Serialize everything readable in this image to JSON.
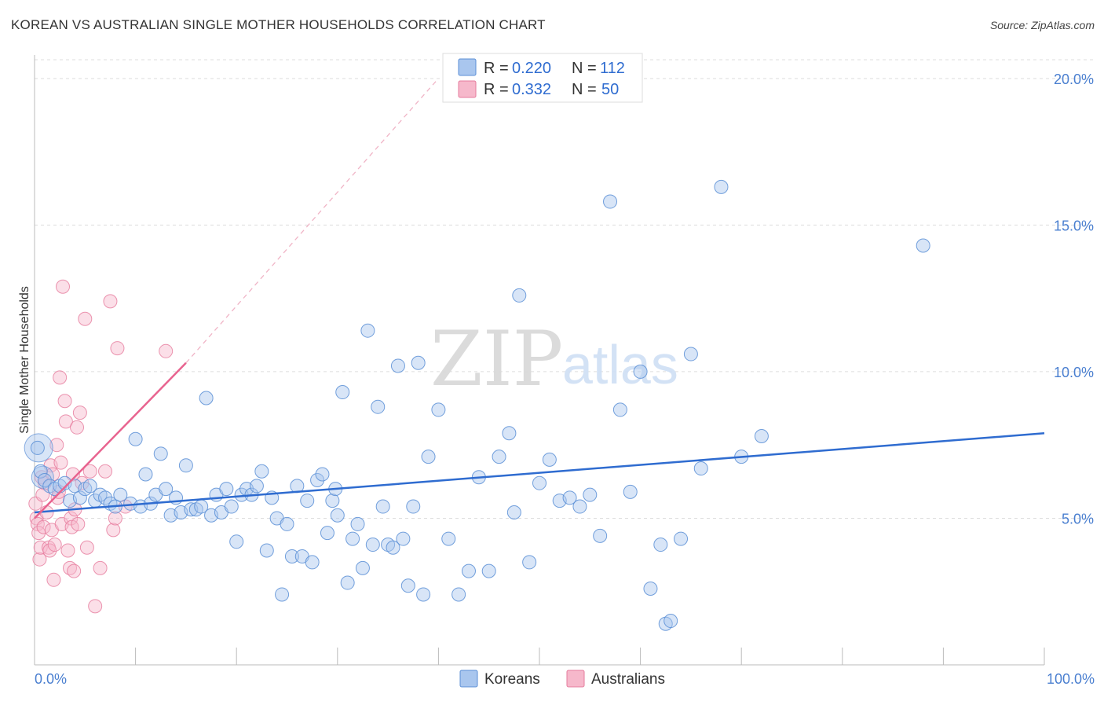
{
  "header": {
    "title": "KOREAN VS AUSTRALIAN SINGLE MOTHER HOUSEHOLDS CORRELATION CHART",
    "source": "Source: ZipAtlas.com"
  },
  "watermark": {
    "zip": "ZIP",
    "atlas": "atlas"
  },
  "colors": {
    "koreans_fill": "#a9c6ee",
    "koreans_stroke": "#5b8fd6",
    "koreans_line": "#2f6cd0",
    "australians_fill": "#f6b8cb",
    "australians_stroke": "#e67b9c",
    "australians_line": "#e8638f",
    "grid": "#dddddd",
    "axis_label": "#4a7fd0"
  },
  "legend": {
    "rows": [
      {
        "r_label": "R =",
        "r_value": "0.220",
        "n_label": "N =",
        "n_value": "112"
      },
      {
        "r_label": "R =",
        "r_value": "0.332",
        "n_label": "N =",
        "n_value": "50"
      }
    ]
  },
  "bottom_legend": {
    "series1": "Koreans",
    "series2": "Australians"
  },
  "chart_data": {
    "type": "scatter",
    "title": "KOREAN VS AUSTRALIAN SINGLE MOTHER HOUSEHOLDS CORRELATION CHART",
    "xlabel": "",
    "ylabel": "Single Mother Households",
    "x_tick_labels": [
      "0.0%",
      "100.0%"
    ],
    "y_tick_labels": [
      "5.0%",
      "10.0%",
      "15.0%",
      "20.0%"
    ],
    "xlim": [
      0,
      100
    ],
    "ylim": [
      0,
      20.8
    ],
    "grid": true,
    "legend_placement": "top-center",
    "series": [
      {
        "name": "Koreans",
        "r": 0.22,
        "n": 112,
        "trend": {
          "x": [
            0,
            100
          ],
          "y": [
            5.2,
            7.9
          ]
        },
        "points": [
          [
            0.3,
            7.4
          ],
          [
            0.6,
            6.6
          ],
          [
            1.0,
            6.3
          ],
          [
            1.5,
            6.1
          ],
          [
            2.0,
            6.0
          ],
          [
            2.5,
            6.1
          ],
          [
            3.0,
            6.2
          ],
          [
            3.5,
            5.6
          ],
          [
            4.0,
            6.1
          ],
          [
            4.5,
            5.7
          ],
          [
            5.0,
            6.0
          ],
          [
            5.5,
            6.1
          ],
          [
            6.0,
            5.6
          ],
          [
            6.5,
            5.8
          ],
          [
            7.0,
            5.7
          ],
          [
            7.5,
            5.5
          ],
          [
            8.0,
            5.4
          ],
          [
            8.5,
            5.8
          ],
          [
            9.5,
            5.5
          ],
          [
            10.0,
            7.7
          ],
          [
            10.5,
            5.4
          ],
          [
            11.0,
            6.5
          ],
          [
            11.5,
            5.5
          ],
          [
            12.0,
            5.8
          ],
          [
            12.5,
            7.2
          ],
          [
            13.0,
            6.0
          ],
          [
            13.5,
            5.1
          ],
          [
            14.0,
            5.7
          ],
          [
            14.5,
            5.2
          ],
          [
            15.0,
            6.8
          ],
          [
            15.5,
            5.3
          ],
          [
            16.0,
            5.3
          ],
          [
            16.5,
            5.4
          ],
          [
            17.0,
            9.1
          ],
          [
            17.5,
            5.1
          ],
          [
            18.0,
            5.8
          ],
          [
            18.5,
            5.2
          ],
          [
            19.0,
            6.0
          ],
          [
            19.5,
            5.4
          ],
          [
            20.0,
            4.2
          ],
          [
            20.5,
            5.8
          ],
          [
            21.0,
            6.0
          ],
          [
            21.5,
            5.8
          ],
          [
            22.0,
            6.1
          ],
          [
            22.5,
            6.6
          ],
          [
            23.0,
            3.9
          ],
          [
            23.5,
            5.7
          ],
          [
            24.0,
            5.0
          ],
          [
            24.5,
            2.4
          ],
          [
            25.0,
            4.8
          ],
          [
            25.5,
            3.7
          ],
          [
            26.0,
            6.1
          ],
          [
            26.5,
            3.7
          ],
          [
            27.0,
            5.6
          ],
          [
            27.5,
            3.5
          ],
          [
            28.0,
            6.3
          ],
          [
            28.5,
            6.5
          ],
          [
            29.0,
            4.5
          ],
          [
            29.5,
            5.6
          ],
          [
            29.8,
            6.0
          ],
          [
            30.0,
            5.1
          ],
          [
            30.5,
            9.3
          ],
          [
            31.0,
            2.8
          ],
          [
            31.5,
            4.3
          ],
          [
            32.0,
            4.8
          ],
          [
            32.5,
            3.3
          ],
          [
            33.0,
            11.4
          ],
          [
            33.5,
            4.1
          ],
          [
            34.0,
            8.8
          ],
          [
            34.5,
            5.4
          ],
          [
            35.0,
            4.1
          ],
          [
            35.5,
            4.0
          ],
          [
            36.0,
            10.2
          ],
          [
            36.5,
            4.3
          ],
          [
            37.0,
            2.7
          ],
          [
            37.5,
            5.4
          ],
          [
            38.0,
            10.3
          ],
          [
            38.5,
            2.4
          ],
          [
            39.0,
            7.1
          ],
          [
            40.0,
            8.7
          ],
          [
            41.0,
            4.3
          ],
          [
            42.0,
            2.4
          ],
          [
            43.0,
            3.2
          ],
          [
            44.0,
            6.4
          ],
          [
            45.0,
            3.2
          ],
          [
            46.0,
            7.1
          ],
          [
            47.0,
            7.9
          ],
          [
            47.5,
            5.2
          ],
          [
            48.0,
            12.6
          ],
          [
            49.0,
            3.5
          ],
          [
            50.0,
            6.2
          ],
          [
            51.0,
            7.0
          ],
          [
            52.0,
            5.6
          ],
          [
            53.0,
            5.7
          ],
          [
            54.0,
            5.4
          ],
          [
            55.0,
            5.8
          ],
          [
            56.0,
            4.4
          ],
          [
            57.0,
            15.8
          ],
          [
            58.0,
            8.7
          ],
          [
            59.0,
            5.9
          ],
          [
            60.0,
            10.0
          ],
          [
            61.0,
            2.6
          ],
          [
            62.0,
            4.1
          ],
          [
            62.5,
            1.4
          ],
          [
            63.0,
            1.5
          ],
          [
            64.0,
            4.3
          ],
          [
            65.0,
            10.6
          ],
          [
            66.0,
            6.7
          ],
          [
            68.0,
            16.3
          ],
          [
            70.0,
            7.1
          ],
          [
            72.0,
            7.8
          ],
          [
            88.0,
            14.3
          ]
        ]
      },
      {
        "name": "Australians",
        "r": 0.332,
        "n": 50,
        "trend": {
          "x": [
            0,
            15
          ],
          "y": [
            5.0,
            10.3
          ]
        },
        "trend_extension": {
          "x": [
            15,
            40
          ],
          "y": [
            10.3,
            20.0
          ]
        },
        "points": [
          [
            0.1,
            5.5
          ],
          [
            0.2,
            5.0
          ],
          [
            0.3,
            4.8
          ],
          [
            0.4,
            4.5
          ],
          [
            0.5,
            3.6
          ],
          [
            0.6,
            4.0
          ],
          [
            0.7,
            6.4
          ],
          [
            0.8,
            5.8
          ],
          [
            0.9,
            4.7
          ],
          [
            1.0,
            6.2
          ],
          [
            1.2,
            5.2
          ],
          [
            1.4,
            4.0
          ],
          [
            1.5,
            3.9
          ],
          [
            1.6,
            6.8
          ],
          [
            1.7,
            4.6
          ],
          [
            1.8,
            6.5
          ],
          [
            1.9,
            2.9
          ],
          [
            2.0,
            4.1
          ],
          [
            2.2,
            7.5
          ],
          [
            2.3,
            5.7
          ],
          [
            2.4,
            5.9
          ],
          [
            2.5,
            9.8
          ],
          [
            2.6,
            6.9
          ],
          [
            2.7,
            4.8
          ],
          [
            2.8,
            12.9
          ],
          [
            3.0,
            9.0
          ],
          [
            3.1,
            8.3
          ],
          [
            3.3,
            3.9
          ],
          [
            3.5,
            3.3
          ],
          [
            3.6,
            5.0
          ],
          [
            3.7,
            4.7
          ],
          [
            3.8,
            6.5
          ],
          [
            3.9,
            3.2
          ],
          [
            4.0,
            5.3
          ],
          [
            4.2,
            8.1
          ],
          [
            4.3,
            4.8
          ],
          [
            4.5,
            8.6
          ],
          [
            4.7,
            6.2
          ],
          [
            5.0,
            11.8
          ],
          [
            5.2,
            4.0
          ],
          [
            5.5,
            6.6
          ],
          [
            6.0,
            2.0
          ],
          [
            6.5,
            3.3
          ],
          [
            7.0,
            6.6
          ],
          [
            7.5,
            12.4
          ],
          [
            7.8,
            4.6
          ],
          [
            8.0,
            5.0
          ],
          [
            8.2,
            10.8
          ],
          [
            9.0,
            5.4
          ],
          [
            13.0,
            10.7
          ]
        ]
      }
    ]
  }
}
